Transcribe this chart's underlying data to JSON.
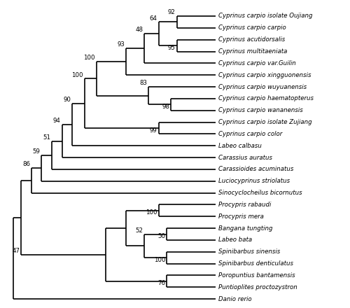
{
  "taxa": [
    "Cyprinus carpio isolate Oujiang",
    "Cyprinus carpio carpio",
    "Cyprinus acutidorsalis",
    "Cyprinus multitaeniata",
    "Cyprinus carpio var.Guilin",
    "Cyprinus carpio xingguonensis",
    "Cyprinus carpio wuyuanensis",
    "Cyprinus carpio haematopterus",
    "Cyprinus carpio wananensis",
    "Cyprinus carpio isolate Zujiang",
    "Cyprinus carpio color",
    "Labeo calbasu",
    "Carassius auratus",
    "Carassioides acuminatus",
    "Luciocyprinus striolatus",
    "Sinocyclocheilus bicornutus",
    "Procypris rabaudi",
    "Procypris mera",
    "Bangana tungting",
    "Labeo bata",
    "Spinibarbus sinensis",
    "Spinibarbus denticulatus",
    "Poropuntius bantamensis",
    "Puntioplites proctozystron",
    "Danio rerio"
  ],
  "figsize": [
    5.0,
    4.4
  ],
  "dpi": 100,
  "lw": 1.2,
  "font_size": 6.2,
  "bootstrap_font_size": 6.2,
  "text_color": "black",
  "line_color": "black",
  "background_color": "white",
  "x_tip": 10.0,
  "x_root": 0.05,
  "x_47": 0.45,
  "x_86": 0.95,
  "x_59": 1.45,
  "x_51": 1.95,
  "x_94": 2.45,
  "x_90": 2.95,
  "x_100b": 3.55,
  "x_100c": 4.15,
  "x_99": 7.2,
  "x_83": 6.7,
  "x_98": 7.8,
  "x_93": 5.6,
  "x_48": 6.5,
  "x_64": 7.2,
  "x_92": 8.1,
  "x_95": 8.1,
  "x_100d": 7.2,
  "x_50": 7.6,
  "x_52": 6.5,
  "x_100e": 7.6,
  "x_76": 7.6,
  "x_lc1": 5.6,
  "x_lc2": 4.6,
  "xlim_left": -0.5,
  "xlim_right": 16.5,
  "ylim_bottom": -0.6,
  "ylim_top": 25.2
}
